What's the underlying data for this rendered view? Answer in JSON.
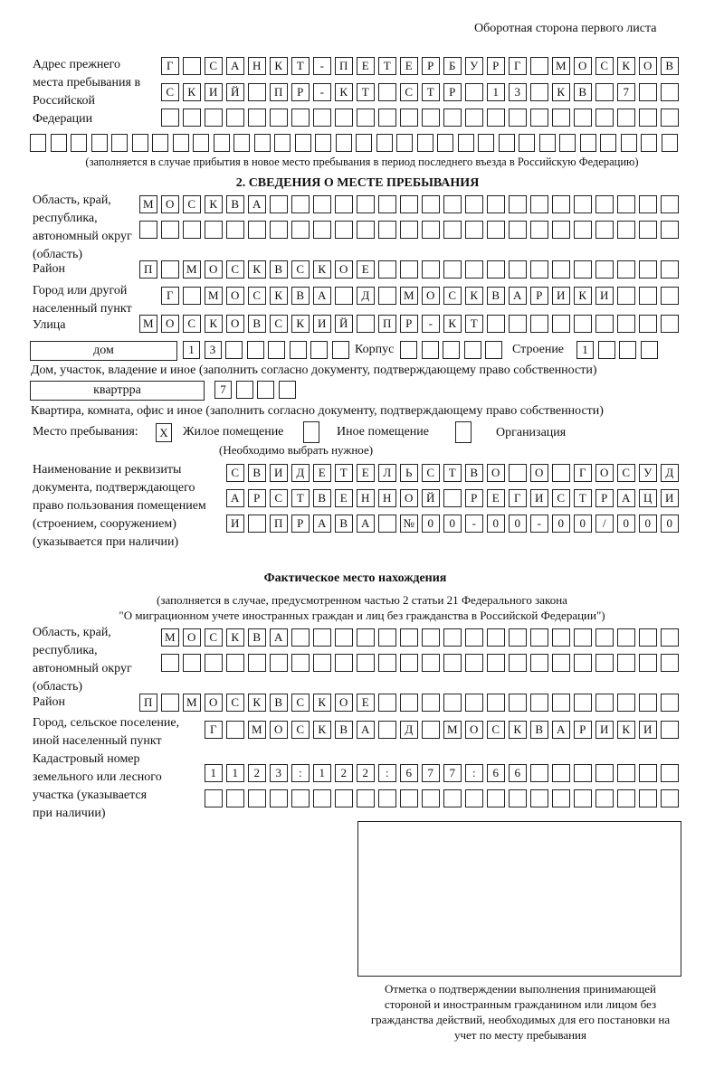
{
  "header": {
    "sheet_side": "Оборотная сторона первого листа"
  },
  "previous_address": {
    "label": "Адрес прежнего места пребывания в Российской Федерации",
    "rows": [
      [
        "Г",
        "",
        "С",
        "А",
        "Н",
        "К",
        "Т",
        "-",
        "П",
        "Е",
        "Т",
        "Е",
        "Р",
        "Б",
        "У",
        "Р",
        "Г",
        "",
        "М",
        "О",
        "С",
        "К",
        "О",
        "В"
      ],
      [
        "С",
        "К",
        "И",
        "Й",
        "",
        "П",
        "Р",
        "-",
        "К",
        "Т",
        "",
        "С",
        "Т",
        "Р",
        "",
        "1",
        "3",
        "",
        "К",
        "В",
        "",
        "7",
        "",
        ""
      ],
      [],
      []
    ],
    "note": "(заполняется в случае прибытия в новое место пребывания в период последнего въезда в Российскую Федерацию)"
  },
  "section2": {
    "title": "2. СВЕДЕНИЯ О МЕСТЕ ПРЕБЫВАНИЯ",
    "region_label": "Область, край, республика, автономный округ (область)",
    "region_rows": [
      [
        "М",
        "О",
        "С",
        "К",
        "В",
        "А"
      ],
      []
    ],
    "district_label": "Район",
    "district_row": [
      "П",
      "",
      "М",
      "О",
      "С",
      "К",
      "В",
      "С",
      "К",
      "О",
      "Е"
    ],
    "city_label": "Город или другой населенный пункт",
    "city_row": [
      "Г",
      "",
      "М",
      "О",
      "С",
      "К",
      "В",
      "А",
      "",
      "Д",
      "",
      "М",
      "О",
      "С",
      "К",
      "В",
      "А",
      "Р",
      "И",
      "К",
      "И"
    ],
    "street_label": "Улица",
    "street_row": [
      "М",
      "О",
      "С",
      "К",
      "О",
      "В",
      "С",
      "К",
      "И",
      "Й",
      "",
      "П",
      "Р",
      "-",
      "К",
      "Т"
    ],
    "house_type": "дом",
    "house_cells": [
      "1",
      "3",
      "",
      "",
      "",
      "",
      "",
      ""
    ],
    "building_label": "Корпус",
    "building_cells": [
      "",
      "",
      "",
      "",
      ""
    ],
    "structure_label": "Строение",
    "structure_cells": [
      "1",
      "",
      "",
      ""
    ],
    "house_caption": "Дом, участок, владение и иное (заполнить согласно документу, подтверждающему право собственности)",
    "apartment_type": "квартрра",
    "apartment_cells": [
      "7",
      "",
      "",
      ""
    ],
    "apartment_caption": "Квартира, комната, офис и иное (заполнить согласно документу, подтверждающему право собственности)",
    "stay_place_label": "Место пребывания:",
    "stay_options": [
      {
        "label": "Жилое помещение",
        "mark": "Х"
      },
      {
        "label": "Иное помещение",
        "mark": ""
      },
      {
        "label": "Организация",
        "mark": ""
      }
    ],
    "stay_note": "(Необходимо выбрать нужное)",
    "document_label": "Наименование и реквизиты документа, подтверждающего право пользования помещением (строением, сооружением) (указывается при наличии)",
    "document_rows": [
      [
        "С",
        "В",
        "И",
        "Д",
        "Е",
        "Т",
        "Е",
        "Л",
        "Ь",
        "С",
        "Т",
        "В",
        "О",
        "",
        "О",
        "",
        "Г",
        "О",
        "С",
        "У",
        "Д"
      ],
      [
        "А",
        "Р",
        "С",
        "Т",
        "В",
        "Е",
        "Н",
        "Н",
        "О",
        "Й",
        "",
        "Р",
        "Е",
        "Г",
        "И",
        "С",
        "Т",
        "Р",
        "А",
        "Ц",
        "И"
      ],
      [
        "И",
        "",
        "П",
        "Р",
        "А",
        "В",
        "А",
        "",
        "№",
        "0",
        "0",
        "-",
        "0",
        "0",
        "-",
        "0",
        "0",
        "/",
        "0",
        "0",
        "0"
      ]
    ]
  },
  "actual": {
    "title": "Фактическое место нахождения",
    "note1": "(заполняется в случае, предусмотренном частью 2 статьи 21 Федерального закона",
    "note2": "\"О миграционном учете иностранных граждан и лиц без гражданства в Российской Федерации\")",
    "region_label": "Область, край, республика, автономный округ (область)",
    "region_rows": [
      [
        "М",
        "О",
        "С",
        "К",
        "В",
        "А"
      ],
      []
    ],
    "district_label": "Район",
    "district_row": [
      "П",
      "",
      "М",
      "О",
      "С",
      "К",
      "В",
      "С",
      "К",
      "О",
      "Е"
    ],
    "city_label": "Город, сельское поселение, иной населенный пункт",
    "city_row": [
      "Г",
      "",
      "М",
      "О",
      "С",
      "К",
      "В",
      "А",
      "",
      "Д",
      "",
      "М",
      "О",
      "С",
      "К",
      "В",
      "А",
      "Р",
      "И",
      "К",
      "И"
    ],
    "cadastral_label": "Кадастровый номер земельного или лесного участка (указывается при наличии)",
    "cadastral_rows": [
      [
        "1",
        "1",
        "2",
        "3",
        ":",
        "1",
        "2",
        "2",
        ":",
        "6",
        "7",
        "7",
        ":",
        "6",
        "6"
      ],
      []
    ]
  },
  "stamp": {
    "caption": "Отметка о подтверждении выполнения принимающей стороной и иностранным гражданином или лицом без гражданства действий, необходимых для его постановки на учет по месту пребывания"
  }
}
